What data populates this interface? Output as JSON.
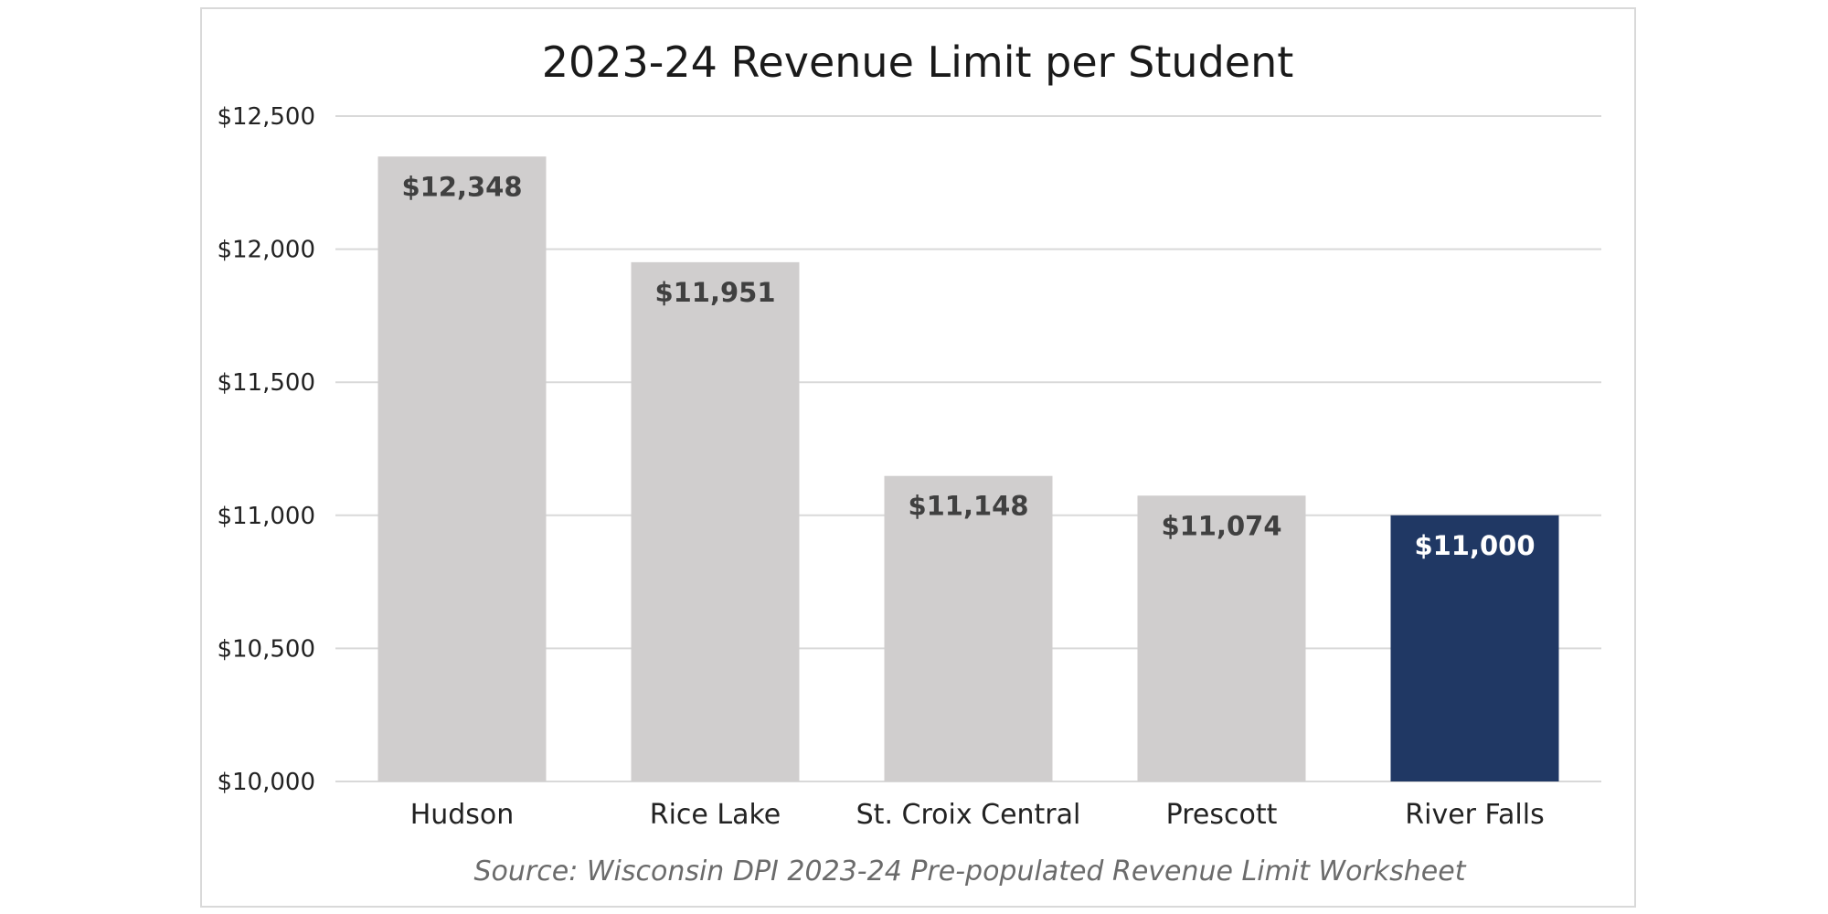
{
  "chart_data": {
    "type": "bar",
    "title": "2023-24 Revenue Limit per Student",
    "categories": [
      "Hudson",
      "Rice Lake",
      "St. Croix Central",
      "Prescott",
      "River Falls"
    ],
    "values": [
      12348,
      11951,
      11148,
      11074,
      11000
    ],
    "value_labels": [
      "$12,348",
      "$11,951",
      "$11,148",
      "$11,074",
      "$11,000"
    ],
    "highlight_category": "River Falls",
    "ylim": [
      10000,
      12500
    ],
    "y_ticks": [
      10000,
      10500,
      11000,
      11500,
      12000,
      12500
    ],
    "y_tick_labels": [
      "$10,000",
      "$10,500",
      "$11,000",
      "$11,500",
      "$12,000",
      "$12,500"
    ],
    "xlabel": "",
    "ylabel": "",
    "grid": true,
    "legend": "none",
    "source": "Source: Wisconsin DPI 2023-24 Pre-populated Revenue Limit Worksheet",
    "colors": {
      "bar": "#d0cece",
      "highlight": "#203864",
      "gridline": "#d9d9d9",
      "label_default": "#404040",
      "label_highlight": "#ffffff"
    }
  }
}
